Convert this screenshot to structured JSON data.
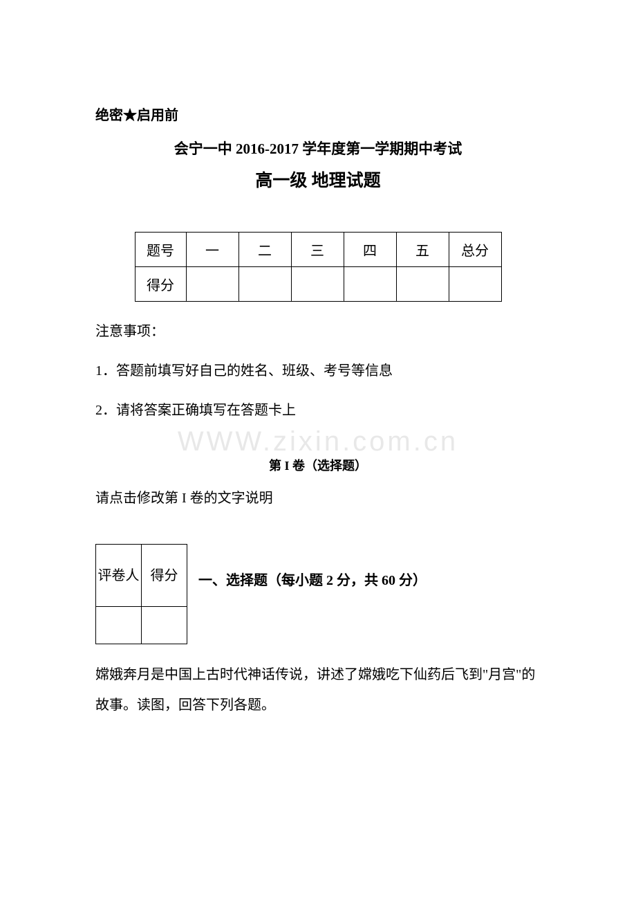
{
  "confidential": "绝密★启用前",
  "title_line1": "会宁一中 2016-2017 学年度第一学期期中考试",
  "title_line2": "高一级  地理试题",
  "score_table": {
    "row1": [
      "题号",
      "一",
      "二",
      "三",
      "四",
      "五",
      "总分"
    ],
    "row2_label": "得分"
  },
  "notice_title": "注意事项：",
  "notice_items": [
    "1．答题前填写好自己的姓名、班级、考号等信息",
    "2．请将答案正确填写在答题卡上"
  ],
  "part_label": "第 I 卷（选择题）",
  "instruction_text": "请点击修改第 I 卷的文字说明",
  "grader_table": {
    "col1": "评卷人",
    "col2": "得分"
  },
  "section_title": "一、选择题（每小题 2 分，共 60 分）",
  "story_text": "嫦娥奔月是中国上古时代神话传说，讲述了嫦娥吃下仙药后飞到\"月宫\"的故事。读图，回答下列各题。",
  "watermark_text": "WWW.zixin.com.cn",
  "colors": {
    "background": "#ffffff",
    "text": "#000000",
    "border": "#000000",
    "watermark": "#e8e8e8"
  },
  "typography": {
    "body_fontsize": 20,
    "title1_fontsize": 21,
    "title2_fontsize": 25,
    "part_label_fontsize": 18,
    "watermark_fontsize": 40
  }
}
